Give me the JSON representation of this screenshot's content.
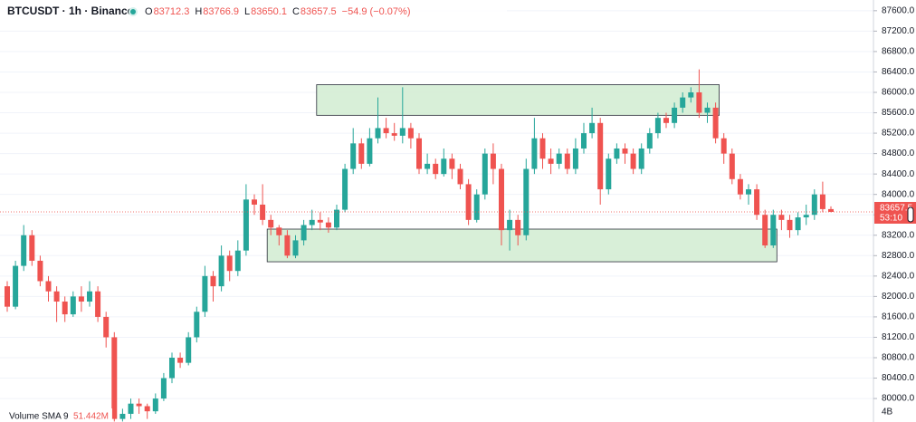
{
  "chart_data": {
    "type": "candlestick",
    "title": "BTCUSDT · 1h · Binance",
    "ohlc_legend": [
      {
        "label": "O",
        "value": "83712.3"
      },
      {
        "label": "H",
        "value": "83766.9"
      },
      {
        "label": "L",
        "value": "83650.1"
      },
      {
        "label": "C",
        "value": "83657.5"
      }
    ],
    "change": "−54.9 (−0.07%)",
    "countdown": "53:10",
    "volume_label": "Volume SMA 9",
    "volume_value": "51.442M",
    "volume_scale": "4B",
    "up_color": "#26a69a",
    "down_color": "#ef5350",
    "zone_color": "#d4edd4",
    "grid": true,
    "ylim": [
      79540,
      87810
    ],
    "yticks": [
      {
        "value": 80000,
        "label": "80000.0"
      },
      {
        "value": 80400,
        "label": "80400.0"
      },
      {
        "value": 80800,
        "label": "80800.0"
      },
      {
        "value": 81200,
        "label": "81200.0"
      },
      {
        "value": 81600,
        "label": "81600.0"
      },
      {
        "value": 82000,
        "label": "82000.0"
      },
      {
        "value": 82400,
        "label": "82400.0"
      },
      {
        "value": 82800,
        "label": "82800.0"
      },
      {
        "value": 83200,
        "label": "83200.0"
      },
      {
        "value": 83600,
        "label": "83600.0"
      },
      {
        "value": 84000,
        "label": "84000.0"
      },
      {
        "value": 84400,
        "label": "84400.0"
      },
      {
        "value": 84800,
        "label": "84800.0"
      },
      {
        "value": 85200,
        "label": "85200.0"
      },
      {
        "value": 85600,
        "label": "85600.0"
      },
      {
        "value": 86000,
        "label": "86000.0"
      },
      {
        "value": 86400,
        "label": "86400.0"
      },
      {
        "value": 86800,
        "label": "86800.0"
      },
      {
        "value": 87200,
        "label": "87200.0"
      },
      {
        "value": 87600,
        "label": "87600.0"
      }
    ],
    "zones": [
      {
        "from": 38,
        "to": 86,
        "top": 86150,
        "bottom": 85550
      },
      {
        "from": 32,
        "to": 93,
        "top": 83320,
        "bottom": 82680
      }
    ],
    "open": [
      82200,
      81800,
      82600,
      83200,
      82700,
      82300,
      82100,
      81900,
      81650,
      82000,
      81900,
      82100,
      81600,
      81200,
      79600,
      79700,
      79900,
      79850,
      79750,
      80000,
      80400,
      80800,
      80700,
      81200,
      81700,
      82400,
      82200,
      82800,
      82500,
      82900,
      83900,
      83800,
      83500,
      83350,
      83200,
      82800,
      83100,
      83400,
      83500,
      83450,
      83350,
      83700,
      84500,
      85000,
      84600,
      85100,
      85300,
      85200,
      85150,
      85300,
      85100,
      84500,
      84600,
      84400,
      84700,
      84500,
      84200,
      83500,
      84000,
      84800,
      84500,
      83300,
      83500,
      83200,
      84500,
      85100,
      84700,
      84600,
      84800,
      84500,
      84900,
      85200,
      85400,
      84100,
      84700,
      84900,
      84800,
      84500,
      84900,
      85200,
      85500,
      85400,
      85700,
      85900,
      86000,
      85600,
      85700,
      85100,
      84800,
      84300,
      84000,
      84100,
      83600,
      83000,
      83600,
      83500,
      83300,
      83550,
      83600,
      84000,
      83712.3
    ],
    "high": [
      82300,
      82700,
      83400,
      83300,
      82800,
      82400,
      82200,
      82000,
      82100,
      82200,
      82300,
      82200,
      81700,
      81300,
      79800,
      80000,
      80000,
      79900,
      80100,
      80500,
      80900,
      80900,
      81300,
      81800,
      82600,
      82500,
      83000,
      82900,
      83100,
      84200,
      84000,
      84200,
      83600,
      83400,
      83300,
      83200,
      83500,
      83700,
      83650,
      83550,
      83800,
      84600,
      85300,
      85100,
      85300,
      85900,
      85500,
      85400,
      86100,
      85400,
      85200,
      84800,
      84700,
      84900,
      84800,
      84600,
      84300,
      84100,
      84900,
      85000,
      84600,
      83700,
      83600,
      84700,
      85500,
      85200,
      84900,
      84900,
      84900,
      85100,
      85400,
      85700,
      85500,
      84800,
      85000,
      85000,
      84900,
      85000,
      85300,
      85600,
      85600,
      85800,
      86000,
      86100,
      86450,
      85800,
      85800,
      85200,
      84900,
      84400,
      84200,
      84200,
      83700,
      83700,
      83700,
      83600,
      83650,
      83800,
      84100,
      84250,
      83766.9
    ],
    "low": [
      81700,
      81750,
      82500,
      82600,
      82200,
      81900,
      81500,
      81500,
      81600,
      81700,
      81800,
      81500,
      81000,
      79550,
      79550,
      79600,
      79700,
      79600,
      79700,
      79950,
      80300,
      80600,
      80650,
      81100,
      81600,
      81900,
      82100,
      82300,
      82400,
      82800,
      83600,
      83400,
      83200,
      83000,
      82750,
      82750,
      83000,
      83300,
      83300,
      83250,
      83300,
      83650,
      84400,
      84500,
      84550,
      85000,
      85100,
      85050,
      85000,
      84900,
      84400,
      84400,
      84300,
      84350,
      84300,
      84100,
      83400,
      83450,
      83900,
      84200,
      83000,
      82900,
      83000,
      83100,
      84400,
      84500,
      84400,
      84500,
      84400,
      84400,
      84800,
      85100,
      83800,
      84000,
      84600,
      84600,
      84400,
      84400,
      84800,
      85100,
      85300,
      85300,
      85600,
      85800,
      85500,
      85400,
      85000,
      84600,
      84200,
      83900,
      83800,
      83500,
      82950,
      82950,
      83300,
      83150,
      83200,
      83400,
      83500,
      83650,
      83650.1
    ],
    "close": [
      81800,
      82600,
      83200,
      82700,
      82300,
      82100,
      81900,
      81650,
      82000,
      81900,
      82100,
      81600,
      81200,
      79600,
      79700,
      79900,
      79850,
      79750,
      80000,
      80400,
      80800,
      80700,
      81200,
      81700,
      82400,
      82200,
      82800,
      82500,
      82900,
      83900,
      83800,
      83500,
      83350,
      83200,
      82800,
      83100,
      83400,
      83500,
      83450,
      83350,
      83700,
      84500,
      85000,
      84600,
      85100,
      85300,
      85200,
      85150,
      85300,
      85100,
      84500,
      84600,
      84400,
      84700,
      84500,
      84200,
      83500,
      84000,
      84800,
      84500,
      83300,
      83500,
      83200,
      84500,
      85100,
      84700,
      84600,
      84800,
      84500,
      84900,
      85200,
      85400,
      84100,
      84700,
      84900,
      84800,
      84500,
      84900,
      85200,
      85500,
      85400,
      85700,
      85900,
      86000,
      85600,
      85700,
      85100,
      84800,
      84300,
      84000,
      84100,
      83600,
      83000,
      83600,
      83500,
      83300,
      83550,
      83600,
      84000,
      83712.3,
      83657.5
    ]
  }
}
